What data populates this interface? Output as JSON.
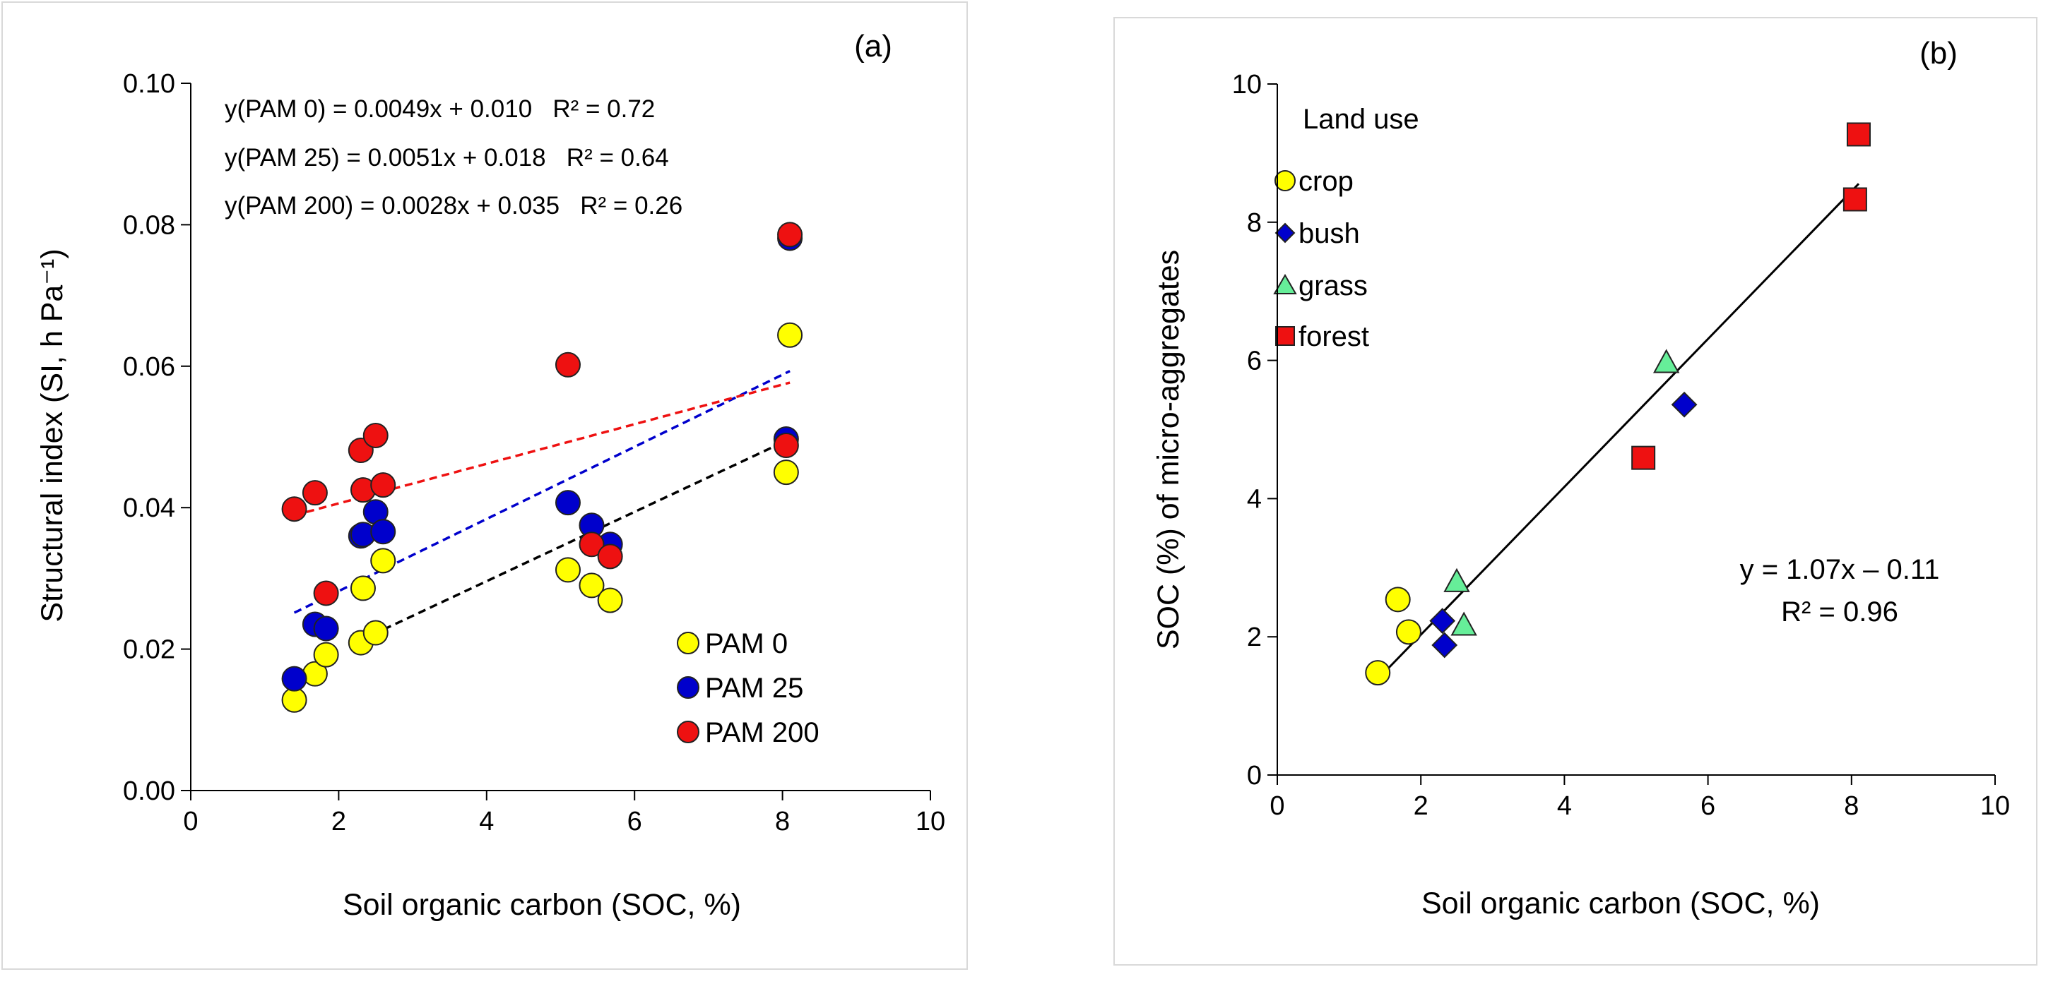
{
  "chart_data": [
    {
      "type": "scatter",
      "panel_label": "(a)",
      "xlabel": "Soil organic carbon (SOC, %)",
      "ylabel": "Structural index (SI, h Pa⁻¹)",
      "xlim": [
        0,
        10
      ],
      "ylim": [
        0,
        0.1
      ],
      "xticks": [
        "0",
        "2",
        "4",
        "6",
        "8",
        "10"
      ],
      "yticks": [
        "0.00",
        "0.02",
        "0.04",
        "0.06",
        "0.08",
        "0.10"
      ],
      "grid": false,
      "legend_position": "bottom-right",
      "series": [
        {
          "name": "PAM 0",
          "color": "#ffff00",
          "marker": "circle",
          "x": [
            1.4,
            1.68,
            1.83,
            2.3,
            2.33,
            2.5,
            2.6,
            5.1,
            5.42,
            5.67,
            8.05,
            8.1
          ],
          "y": [
            0.0128,
            0.0165,
            0.0192,
            0.0209,
            0.0286,
            0.0223,
            0.0325,
            0.0312,
            0.029,
            0.0269,
            0.045,
            0.0644
          ]
        },
        {
          "name": "PAM 25",
          "color": "#0000cc",
          "marker": "circle",
          "x": [
            1.4,
            1.68,
            1.83,
            2.3,
            2.33,
            2.5,
            2.6,
            5.1,
            5.42,
            5.67,
            8.05,
            8.1
          ],
          "y": [
            0.0158,
            0.0235,
            0.0229,
            0.036,
            0.0362,
            0.0394,
            0.0366,
            0.0407,
            0.0375,
            0.0348,
            0.0497,
            0.0781
          ]
        },
        {
          "name": "PAM 200",
          "color": "#ee1111",
          "marker": "circle",
          "x": [
            1.4,
            1.68,
            1.83,
            2.3,
            2.33,
            2.5,
            2.6,
            5.1,
            5.42,
            5.67,
            8.05,
            8.1
          ],
          "y": [
            0.0398,
            0.0421,
            0.0279,
            0.0481,
            0.0425,
            0.0502,
            0.0432,
            0.0602,
            0.0348,
            0.0331,
            0.0488,
            0.0786
          ]
        }
      ],
      "trendlines": [
        {
          "series": "PAM 0",
          "color": "#000000",
          "slope": 0.0049,
          "intercept": 0.01,
          "x_range": [
            2.3,
            8.1
          ]
        },
        {
          "series": "PAM 25",
          "color": "#0000cc",
          "slope": 0.0051,
          "intercept": 0.018,
          "x_range": [
            1.4,
            8.1
          ]
        },
        {
          "series": "PAM 200",
          "color": "#ee1111",
          "slope": 0.0028,
          "intercept": 0.035,
          "x_range": [
            1.4,
            8.1
          ]
        }
      ],
      "equations": [
        "y(PAM 0) = 0.0049x + 0.010   R² = 0.72",
        "y(PAM 25) = 0.0051x + 0.018   R² = 0.64",
        "y(PAM 200) = 0.0028x + 0.035   R² = 0.26"
      ]
    },
    {
      "type": "scatter",
      "panel_label": "(b)",
      "xlabel": "Soil organic carbon (SOC, %)",
      "ylabel": "SOC (%) of micro-aggregates",
      "xlim": [
        0,
        10
      ],
      "ylim": [
        0,
        10
      ],
      "xticks": [
        "0",
        "2",
        "4",
        "6",
        "8",
        "10"
      ],
      "yticks": [
        "0",
        "2",
        "4",
        "6",
        "8",
        "10"
      ],
      "grid": false,
      "legend_title": "Land use",
      "legend_position": "top-left",
      "series": [
        {
          "name": "crop",
          "color": "#ffff00",
          "marker": "circle",
          "x": [
            1.4,
            1.68,
            1.83
          ],
          "y": [
            1.48,
            2.54,
            2.07
          ]
        },
        {
          "name": "bush",
          "color": "#0000cc",
          "marker": "diamond",
          "x": [
            2.3,
            2.33,
            5.67
          ],
          "y": [
            2.23,
            1.88,
            5.36
          ]
        },
        {
          "name": "grass",
          "color": "#66ee99",
          "marker": "triangle",
          "x": [
            2.5,
            2.6,
            5.42
          ],
          "y": [
            2.79,
            2.16,
            5.96
          ]
        },
        {
          "name": "forest",
          "color": "#ee1111",
          "marker": "square",
          "x": [
            5.1,
            8.05,
            8.1
          ],
          "y": [
            4.59,
            8.33,
            9.27
          ]
        }
      ],
      "trendline": {
        "color": "#000000",
        "slope": 1.07,
        "intercept": -0.11,
        "x_range": [
          1.4,
          8.1
        ]
      },
      "equation": "y = 1.07x – 0.11",
      "r_squared": "R² = 0.96"
    }
  ]
}
